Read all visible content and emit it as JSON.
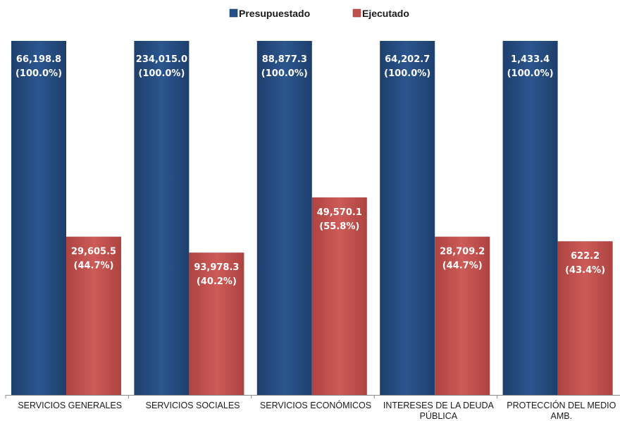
{
  "chart_data": {
    "type": "bar",
    "categories": [
      [
        "SERVICIOS GENERALES"
      ],
      [
        "SERVICIOS SOCIALES"
      ],
      [
        "SERVICIOS ECONÓMICOS"
      ],
      [
        "INTERESES DE LA DEUDA",
        "PÚBLICA"
      ],
      [
        "PROTECCIÓN DEL MEDIO",
        "AMB."
      ]
    ],
    "series": [
      {
        "name": "Presupuestado",
        "color": "#264f85",
        "values": [
          100.0,
          100.0,
          100.0,
          100.0,
          100.0
        ],
        "amounts": [
          "66,198.8",
          "234,015.0",
          "88,877.3",
          "64,202.7",
          "1,433.4"
        ],
        "percents": [
          "(100.0%)",
          "(100.0%)",
          "(100.0%)",
          "(100.0%)",
          "(100.0%)"
        ]
      },
      {
        "name": "Ejecutado",
        "color": "#c0504d",
        "values": [
          44.7,
          40.2,
          55.8,
          44.7,
          43.4
        ],
        "amounts": [
          "29,605.5",
          "93,978.3",
          "49,570.1",
          "28,709.2",
          "622.2"
        ],
        "percents": [
          "(44.7%)",
          "(40.2%)",
          "(55.8%)",
          "(44.7%)",
          "(43.4%)"
        ]
      }
    ],
    "ylim": [
      0,
      100
    ],
    "legend_position": "top-center",
    "grid": false
  }
}
